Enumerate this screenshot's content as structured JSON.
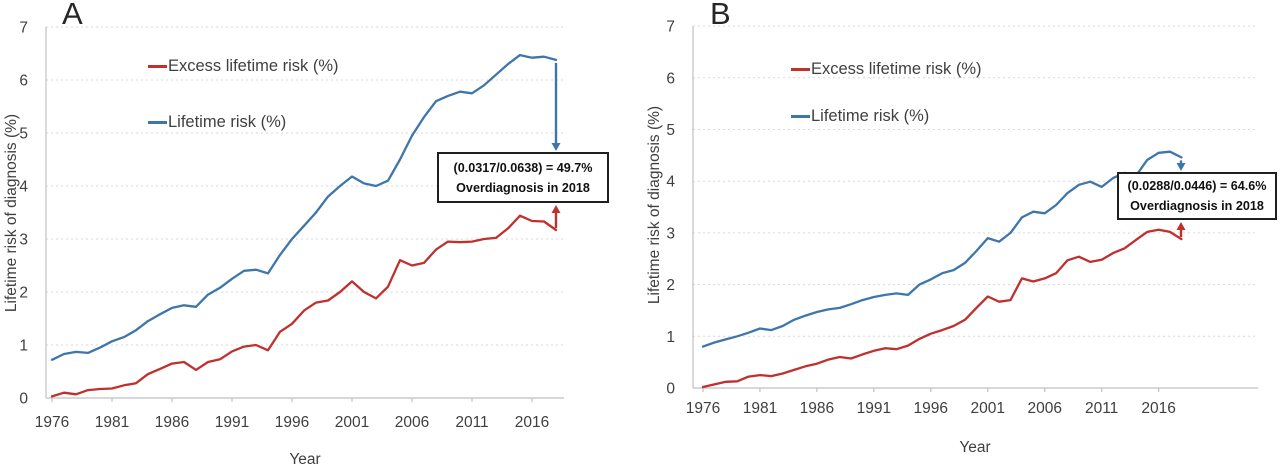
{
  "figure": {
    "background": "#ffffff",
    "accent_red": "#c0302c",
    "accent_blue": "#3e76ac",
    "gridline_color": "#d9d9d9",
    "axis_color": "#c0c0c0",
    "text_color": "#3f3f3f"
  },
  "chart_data": [
    {
      "type": "line",
      "title": "A",
      "xlabel": "Year",
      "ylabel": "Lifetime risk of diagnosis (%)",
      "ylim": [
        0,
        7
      ],
      "y_ticks": [
        0,
        1,
        2,
        3,
        4,
        5,
        6,
        7
      ],
      "x_tick_labels": [
        1976,
        1981,
        1986,
        1991,
        1996,
        2001,
        2006,
        2011,
        2016
      ],
      "grid": "horizontal-dotted",
      "legend_position": "upper-left-inside",
      "x": [
        1976,
        1977,
        1978,
        1979,
        1980,
        1981,
        1982,
        1983,
        1984,
        1985,
        1986,
        1987,
        1988,
        1989,
        1990,
        1991,
        1992,
        1993,
        1994,
        1995,
        1996,
        1997,
        1998,
        1999,
        2000,
        2001,
        2002,
        2003,
        2004,
        2005,
        2006,
        2007,
        2008,
        2009,
        2010,
        2011,
        2012,
        2013,
        2014,
        2015,
        2016,
        2017,
        2018
      ],
      "series": [
        {
          "name": "Excess lifetime risk (%)",
          "color": "#c0302c",
          "values": [
            0.03,
            0.1,
            0.07,
            0.15,
            0.17,
            0.18,
            0.24,
            0.28,
            0.45,
            0.55,
            0.65,
            0.68,
            0.53,
            0.68,
            0.73,
            0.88,
            0.97,
            1.0,
            0.9,
            1.25,
            1.4,
            1.65,
            1.8,
            1.84,
            2.0,
            2.2,
            2.0,
            1.88,
            2.1,
            2.6,
            2.5,
            2.55,
            2.8,
            2.95,
            2.94,
            2.95,
            3.0,
            3.02,
            3.2,
            3.44,
            3.34,
            3.33,
            3.17
          ]
        },
        {
          "name": "Lifetime risk (%)",
          "color": "#3e76ac",
          "values": [
            0.72,
            0.83,
            0.87,
            0.85,
            0.95,
            1.07,
            1.15,
            1.28,
            1.45,
            1.58,
            1.7,
            1.75,
            1.72,
            1.95,
            2.08,
            2.25,
            2.4,
            2.42,
            2.35,
            2.7,
            3.0,
            3.25,
            3.5,
            3.8,
            4.0,
            4.18,
            4.05,
            4.0,
            4.1,
            4.5,
            4.95,
            5.3,
            5.6,
            5.7,
            5.78,
            5.75,
            5.9,
            6.1,
            6.3,
            6.47,
            6.42,
            6.44,
            6.38
          ]
        }
      ],
      "annotation": {
        "line1": "(0.0317/0.0638) = 49.7%",
        "line2": "Overdiagnosis in 2018",
        "target_year": 2018,
        "excess_risk_2018": 0.0317,
        "lifetime_risk_2018": 0.0638,
        "overdiagnosis_pct": 49.7
      }
    },
    {
      "type": "line",
      "title": "B",
      "xlabel": "Year",
      "ylabel": "Lifetime risk of diagnosis (%)",
      "ylim": [
        0,
        7
      ],
      "y_ticks": [
        0,
        1,
        2,
        3,
        4,
        5,
        6,
        7
      ],
      "x_tick_labels": [
        1976,
        1981,
        1986,
        1991,
        1996,
        2001,
        2006,
        2011,
        2016
      ],
      "grid": "horizontal-dotted",
      "legend_position": "upper-left-inside",
      "x": [
        1976,
        1977,
        1978,
        1979,
        1980,
        1981,
        1982,
        1983,
        1984,
        1985,
        1986,
        1987,
        1988,
        1989,
        1990,
        1991,
        1992,
        1993,
        1994,
        1995,
        1996,
        1997,
        1998,
        1999,
        2000,
        2001,
        2002,
        2003,
        2004,
        2005,
        2006,
        2007,
        2008,
        2009,
        2010,
        2011,
        2012,
        2013,
        2014,
        2015,
        2016,
        2017,
        2018
      ],
      "series": [
        {
          "name": "Excess lifetime risk (%)",
          "color": "#c0302c",
          "values": [
            0.02,
            0.07,
            0.12,
            0.13,
            0.22,
            0.25,
            0.23,
            0.28,
            0.35,
            0.42,
            0.47,
            0.55,
            0.6,
            0.57,
            0.65,
            0.72,
            0.77,
            0.75,
            0.82,
            0.95,
            1.05,
            1.12,
            1.2,
            1.32,
            1.55,
            1.77,
            1.67,
            1.7,
            2.12,
            2.06,
            2.12,
            2.22,
            2.47,
            2.54,
            2.44,
            2.48,
            2.61,
            2.7,
            2.86,
            3.02,
            3.06,
            3.02,
            2.88
          ]
        },
        {
          "name": "Lifetime risk (%)",
          "color": "#3e76ac",
          "values": [
            0.8,
            0.88,
            0.94,
            1.0,
            1.07,
            1.15,
            1.12,
            1.2,
            1.32,
            1.4,
            1.47,
            1.52,
            1.55,
            1.62,
            1.7,
            1.76,
            1.8,
            1.83,
            1.8,
            2.0,
            2.1,
            2.22,
            2.28,
            2.42,
            2.65,
            2.9,
            2.83,
            3.0,
            3.3,
            3.41,
            3.38,
            3.54,
            3.77,
            3.93,
            3.99,
            3.89,
            4.06,
            4.16,
            4.1,
            4.41,
            4.55,
            4.57,
            4.46
          ]
        }
      ],
      "annotation": {
        "line1": "(0.0288/0.0446) = 64.6%",
        "line2": "Overdiagnosis in 2018",
        "target_year": 2018,
        "excess_risk_2018": 0.0288,
        "lifetime_risk_2018": 0.0446,
        "overdiagnosis_pct": 64.6
      }
    }
  ]
}
